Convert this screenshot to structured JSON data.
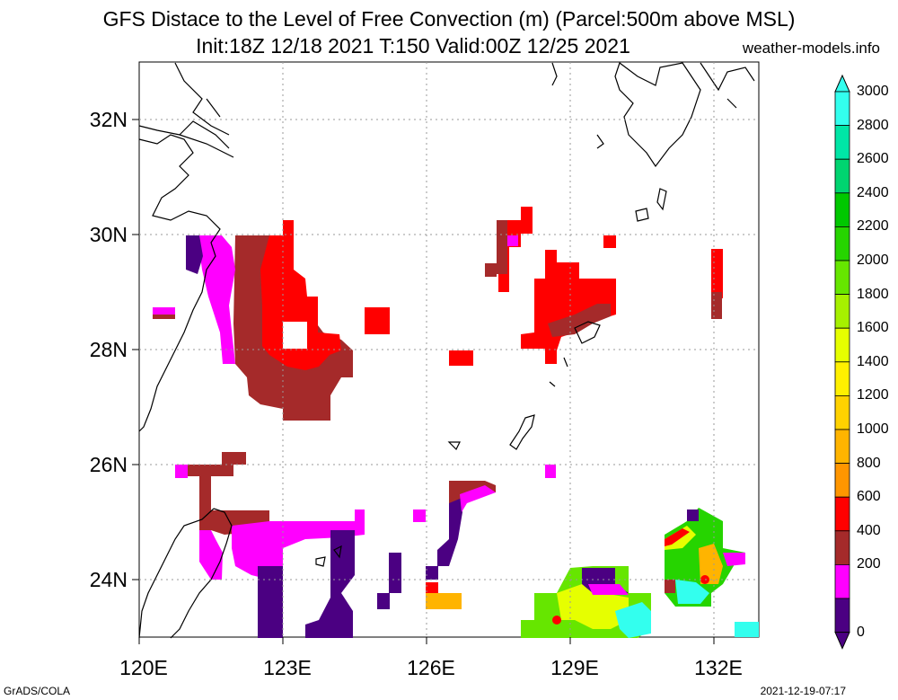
{
  "header": {
    "title": "GFS Distace to the Level of Free Convection (m) (Parcel:500m above MSL)",
    "subtitle": "Init:18Z 12/18 2021 T:150 Valid:00Z 12/25 2021",
    "site": "weather-models.info"
  },
  "axes": {
    "lat_labels": [
      "32N",
      "30N",
      "28N",
      "26N",
      "24N"
    ],
    "lon_labels": [
      "120E",
      "123E",
      "126E",
      "129E",
      "132E"
    ]
  },
  "colorbar": {
    "labels": [
      "3000",
      "2800",
      "2600",
      "2400",
      "2200",
      "2000",
      "1800",
      "1600",
      "1400",
      "1200",
      "1000",
      "800",
      "600",
      "400",
      "200",
      "0"
    ],
    "colors": [
      "#33ffee",
      "#00e6a6",
      "#00d470",
      "#00c800",
      "#26d400",
      "#66e600",
      "#a6f000",
      "#e6ff00",
      "#fff000",
      "#ffd200",
      "#ffb400",
      "#ff9600",
      "#ff0000",
      "#a52a2a",
      "#ff00ff",
      "#4b0082"
    ]
  },
  "footer": {
    "left": "GrADS/COLA",
    "right": "2021-12-19-07:17"
  }
}
